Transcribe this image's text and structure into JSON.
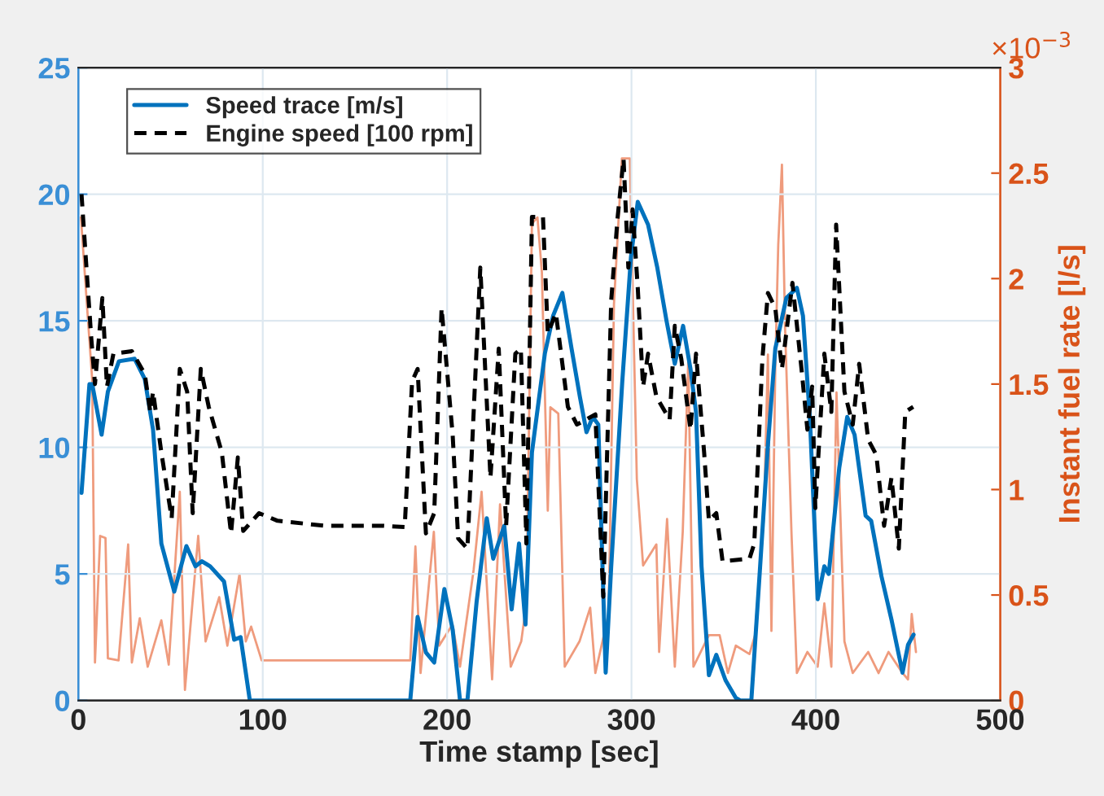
{
  "chart_data": {
    "type": "line",
    "xlabel": "Time stamp [sec]",
    "y2label": "Instant fuel rate [l/s]",
    "annotations": [
      "×10$^{−3}$"
    ],
    "xlim": [
      0,
      500
    ],
    "xticks": [
      0,
      100,
      200,
      300,
      400,
      500
    ],
    "ylim": [
      0,
      25
    ],
    "yticks": [
      0,
      5,
      10,
      15,
      20,
      25
    ],
    "y2lim": [
      0,
      3
    ],
    "y2ticks": [
      0,
      0.5,
      1,
      1.5,
      2,
      2.5,
      3
    ],
    "grid": true,
    "legend": "top left",
    "series": [
      {
        "name": "Speed trace [m/s]",
        "color": "#0072bd",
        "line_style": "solid",
        "x": [
          1.7,
          6,
          7.5,
          12.6,
          16,
          22,
          30.5,
          36,
          40.5,
          45,
          52,
          58.6,
          63.5,
          67,
          71.5,
          79,
          84.5,
          88,
          93,
          180,
          184,
          188.5,
          193,
          198.5,
          203,
          207,
          211,
          216,
          221.5,
          225,
          231,
          235,
          239,
          242.5,
          246,
          253,
          257.5,
          262.5,
          267.5,
          272,
          275.6,
          279,
          282,
          286,
          289,
          295,
          299.7,
          303.4,
          309,
          314,
          319,
          323.5,
          328,
          332,
          335,
          338,
          342,
          346,
          351,
          356.6,
          359,
          365,
          369.6,
          374,
          378,
          384,
          389.7,
          393,
          396.8,
          401,
          404.6,
          407,
          412.7,
          417,
          421,
          427,
          430,
          435.6,
          441,
          447,
          450,
          453
        ],
        "values": [
          8.2,
          12.5,
          12.5,
          10.5,
          12.2,
          13.4,
          13.5,
          12.7,
          10.7,
          6.2,
          4.3,
          6.1,
          5.3,
          5.5,
          5.3,
          4.7,
          2.4,
          2.5,
          0,
          0,
          3.3,
          1.9,
          1.5,
          4.4,
          2.8,
          0,
          0,
          3.9,
          7.2,
          5.6,
          6.9,
          3.6,
          6.2,
          3.0,
          9.8,
          13.7,
          15.2,
          16.1,
          13.9,
          12,
          10.6,
          11.2,
          10.9,
          1.1,
          5.3,
          12.6,
          17.5,
          19.7,
          18.8,
          17.1,
          15.0,
          13.3,
          14.8,
          13.1,
          11.4,
          5.3,
          1.0,
          1.8,
          0.8,
          0.1,
          0,
          0,
          5.1,
          10.1,
          13.9,
          15.9,
          16.3,
          15.2,
          11.1,
          4.0,
          5.3,
          5.0,
          9.2,
          11.2,
          10.5,
          7.3,
          7.1,
          4.9,
          3.2,
          1.1,
          2.2,
          2.6
        ]
      },
      {
        "name": "Engine speed [100 rpm]",
        "color": "#000000",
        "line_style": "dashed",
        "x": [
          1.7,
          4,
          7,
          9,
          13,
          15.5,
          19,
          29,
          36,
          39,
          40.5,
          45,
          50.6,
          55,
          59,
          62,
          66.4,
          70.7,
          77.8,
          82.8,
          86.5,
          89.4,
          98,
          108,
          134,
          165.5,
          177,
          181,
          184,
          188.5,
          193,
          197,
          203,
          206,
          211,
          218,
          223.5,
          228,
          232,
          237,
          240,
          243,
          246,
          252,
          254.6,
          259,
          265.5,
          270.4,
          280.4,
          284.7,
          289,
          292.5,
          295.7,
          298.3,
          300.6,
          303.4,
          306.3,
          309,
          313.5,
          320.7,
          323.5,
          327,
          332,
          335,
          339.4,
          342,
          346,
          349.4,
          364,
          366.6,
          371,
          374,
          378,
          381.6,
          387.3,
          392.5,
          395.4,
          398,
          399.7,
          404.6,
          408.4,
          411,
          415.5,
          420,
          423.5,
          428.4,
          432.8,
          437,
          441,
          445,
          448.5,
          452.8
        ],
        "values": [
          20.0,
          17.5,
          14.3,
          12.5,
          15.9,
          12.4,
          13.7,
          13.8,
          12.9,
          11.4,
          12.2,
          9.8,
          7.2,
          13.1,
          12.2,
          7.4,
          13.1,
          11.6,
          9.8,
          6.6,
          9.6,
          6.7,
          7.4,
          7.1,
          6.9,
          6.9,
          6.85,
          12.6,
          13.1,
          6.6,
          7.4,
          15.5,
          10.5,
          6.4,
          6.0,
          17.1,
          8.8,
          13.9,
          6.9,
          13.7,
          13.9,
          6.2,
          19.1,
          19.1,
          14.5,
          15.3,
          11.6,
          10.9,
          11.3,
          4.1,
          15.8,
          19.1,
          21.4,
          17.1,
          19.4,
          16.3,
          12.4,
          13.7,
          12,
          11.1,
          14.8,
          13.5,
          10.7,
          13.7,
          9.8,
          7.1,
          7.4,
          5.5,
          5.6,
          6.2,
          13.5,
          16.1,
          15.5,
          13.1,
          16.5,
          12.9,
          10.7,
          12.4,
          7.6,
          13.7,
          11.4,
          18.8,
          12.2,
          10.9,
          13.3,
          10.3,
          9.7,
          6.9,
          8.8,
          6.0,
          11.4,
          11.6
        ]
      },
      {
        "color": "#ef9b7d",
        "line_style": "solid",
        "axis": "y2",
        "x": [
          1.4,
          4.6,
          7.5,
          9,
          11.8,
          14.7,
          16,
          21.8,
          27,
          29,
          33.3,
          37.6,
          45,
          49,
          55,
          57.8,
          65,
          69,
          76.4,
          80.8,
          87.4,
          90.8,
          93.7,
          99.4,
          165.5,
          180,
          182.8,
          185.6,
          192.8,
          195.7,
          202.9,
          207,
          214.4,
          218.7,
          224.4,
          228.7,
          234.5,
          240.2,
          243,
          246,
          249,
          251.4,
          254.6,
          256,
          260.3,
          263.8,
          271.8,
          277.6,
          280.4,
          287.6,
          290.5,
          294.8,
          299.1,
          302.9,
          306.3,
          313.5,
          315,
          319.3,
          323.5,
          327.8,
          330.8,
          333.6,
          342,
          347.8,
          352.3,
          356.6,
          364,
          367,
          371.8,
          374,
          375.9,
          378,
          379.6,
          381.6,
          383.3,
          386.8,
          389.7,
          395.4,
          401,
          404.6,
          408.4,
          411.2,
          415.5,
          420,
          428.4,
          434,
          439.4,
          447,
          450,
          452,
          454.3
        ],
        "values": [
          2.29,
          1.88,
          1.52,
          0.18,
          0.78,
          0.77,
          0.2,
          0.19,
          0.74,
          0.18,
          0.39,
          0.16,
          0.38,
          0.17,
          0.99,
          0.05,
          0.78,
          0.28,
          0.49,
          0.26,
          0.6,
          0.28,
          0.35,
          0.19,
          0.19,
          0.19,
          0.73,
          0.13,
          0.8,
          0.26,
          0.36,
          0.16,
          0.62,
          0.99,
          0.1,
          0.93,
          0.16,
          0.28,
          0.46,
          2.26,
          2.29,
          2.03,
          0.9,
          1.39,
          1.36,
          0.16,
          0.28,
          0.44,
          0.13,
          0.41,
          1.88,
          2.57,
          2.57,
          1.05,
          0.64,
          0.74,
          0.23,
          0.86,
          0.16,
          0.8,
          1.61,
          0.16,
          0.31,
          0.31,
          0.13,
          0.26,
          0.22,
          0.31,
          0.87,
          1.64,
          0.33,
          1.58,
          2.16,
          2.54,
          1.77,
          0.79,
          0.13,
          0.23,
          0.16,
          0.46,
          0.16,
          1.46,
          0.28,
          0.13,
          0.23,
          0.13,
          0.23,
          0.13,
          0.1,
          0.41,
          0.23
        ]
      }
    ]
  }
}
